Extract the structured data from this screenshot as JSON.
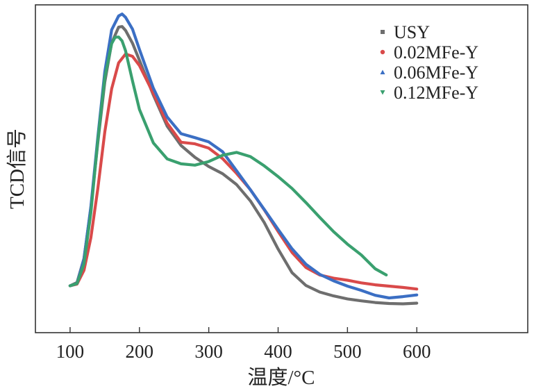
{
  "chart_data": {
    "type": "line",
    "title": "",
    "xlabel": "温度/°C",
    "ylabel": "TCD信号",
    "xlim": [
      50,
      760
    ],
    "ylim": [
      0,
      1
    ],
    "y_ticks_shown": false,
    "x_ticks": [
      100,
      200,
      300,
      400,
      500,
      600
    ],
    "x_tick_labels": [
      "100",
      "200",
      "300",
      "400",
      "500",
      "600"
    ],
    "legend_position": "top-right",
    "series": [
      {
        "name": "USY",
        "color": "#6e6e6e",
        "marker": "square",
        "x": [
          100,
          110,
          120,
          130,
          140,
          150,
          160,
          170,
          175,
          180,
          190,
          200,
          220,
          240,
          260,
          280,
          300,
          320,
          340,
          360,
          380,
          400,
          420,
          440,
          460,
          480,
          500,
          520,
          540,
          560,
          580,
          600
        ],
        "y": [
          0.143,
          0.153,
          0.226,
          0.381,
          0.58,
          0.764,
          0.884,
          0.932,
          0.934,
          0.922,
          0.883,
          0.831,
          0.725,
          0.63,
          0.571,
          0.535,
          0.507,
          0.485,
          0.452,
          0.402,
          0.336,
          0.255,
          0.183,
          0.144,
          0.124,
          0.112,
          0.103,
          0.097,
          0.092,
          0.089,
          0.088,
          0.09
        ]
      },
      {
        "name": "0.02MFe-Y",
        "color": "#d94a4a",
        "marker": "circle",
        "x": [
          100,
          110,
          120,
          130,
          140,
          150,
          160,
          170,
          180,
          190,
          200,
          220,
          240,
          260,
          280,
          300,
          320,
          340,
          360,
          380,
          400,
          420,
          440,
          460,
          480,
          500,
          520,
          540,
          560,
          580,
          600
        ],
        "y": [
          0.143,
          0.148,
          0.19,
          0.29,
          0.44,
          0.612,
          0.744,
          0.823,
          0.85,
          0.843,
          0.815,
          0.73,
          0.639,
          0.581,
          0.576,
          0.563,
          0.531,
          0.486,
          0.436,
          0.375,
          0.309,
          0.245,
          0.199,
          0.176,
          0.166,
          0.16,
          0.152,
          0.146,
          0.142,
          0.138,
          0.133
        ]
      },
      {
        "name": "0.06MFe-Y",
        "color": "#3b6fc4",
        "marker": "triangle-up",
        "x": [
          100,
          110,
          120,
          130,
          140,
          150,
          160,
          170,
          175,
          180,
          190,
          200,
          220,
          240,
          260,
          280,
          300,
          320,
          340,
          360,
          380,
          400,
          420,
          440,
          460,
          480,
          500,
          520,
          540,
          560,
          580,
          600
        ],
        "y": [
          0.143,
          0.15,
          0.224,
          0.385,
          0.597,
          0.796,
          0.924,
          0.966,
          0.972,
          0.962,
          0.926,
          0.864,
          0.746,
          0.658,
          0.607,
          0.595,
          0.582,
          0.552,
          0.494,
          0.436,
          0.376,
          0.315,
          0.256,
          0.209,
          0.178,
          0.158,
          0.142,
          0.129,
          0.114,
          0.106,
          0.11,
          0.115
        ]
      },
      {
        "name": "0.12MFe-Y",
        "color": "#3aa06f",
        "marker": "triangle-down",
        "x": [
          100,
          110,
          120,
          130,
          140,
          150,
          160,
          165,
          170,
          175,
          180,
          190,
          200,
          220,
          240,
          260,
          280,
          300,
          320,
          340,
          360,
          380,
          400,
          420,
          440,
          460,
          480,
          500,
          520,
          540,
          556
        ],
        "y": [
          0.143,
          0.15,
          0.21,
          0.367,
          0.587,
          0.778,
          0.882,
          0.901,
          0.902,
          0.89,
          0.86,
          0.768,
          0.681,
          0.579,
          0.53,
          0.515,
          0.511,
          0.522,
          0.541,
          0.55,
          0.537,
          0.509,
          0.476,
          0.44,
          0.397,
          0.352,
          0.308,
          0.27,
          0.237,
          0.195,
          0.176
        ]
      }
    ]
  }
}
